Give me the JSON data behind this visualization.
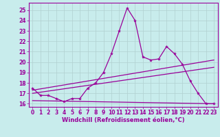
{
  "xlabel": "Windchill (Refroidissement éolien,°C)",
  "background_color": "#c8ecec",
  "line_color": "#990099",
  "grid_color": "#b0d0d0",
  "xlim": [
    -0.5,
    23.5
  ],
  "ylim": [
    15.7,
    25.7
  ],
  "yticks": [
    16,
    17,
    18,
    19,
    20,
    21,
    22,
    23,
    24,
    25
  ],
  "xticks": [
    0,
    1,
    2,
    3,
    4,
    5,
    6,
    7,
    8,
    9,
    10,
    11,
    12,
    13,
    14,
    15,
    16,
    17,
    18,
    19,
    20,
    21,
    22,
    23
  ],
  "series1_x": [
    0,
    1,
    2,
    3,
    4,
    5,
    6,
    7,
    8,
    9,
    10,
    11,
    12,
    13,
    14,
    15,
    16,
    17,
    18,
    19,
    20,
    21,
    22,
    23
  ],
  "series1_y": [
    17.5,
    16.8,
    16.8,
    16.5,
    16.2,
    16.5,
    16.5,
    17.5,
    18.0,
    19.0,
    20.8,
    23.0,
    25.2,
    24.0,
    20.5,
    20.2,
    20.3,
    21.5,
    20.8,
    19.8,
    18.2,
    17.0,
    16.0,
    16.0
  ],
  "series2_x": [
    0,
    23
  ],
  "series2_y": [
    16.3,
    16.0
  ],
  "series3_x": [
    0,
    23
  ],
  "series3_y": [
    17.0,
    19.5
  ],
  "series4_x": [
    0,
    23
  ],
  "series4_y": [
    17.3,
    20.2
  ],
  "xlabel_fontsize": 6,
  "tick_fontsize": 5.5
}
